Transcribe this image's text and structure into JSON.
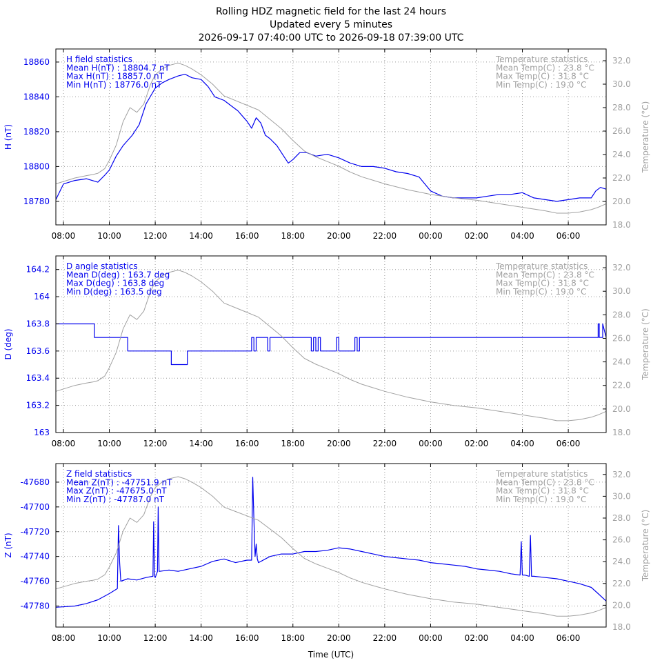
{
  "header": {
    "title_line1": "Rolling HDZ magnetic field for the last 24 hours",
    "title_line2": "Updated every 5 minutes",
    "title_line3": "2026-09-17 07:40:00 UTC to 2026-09-18 07:39:00 UTC"
  },
  "colors": {
    "primary": "#0000ee",
    "temperature": "#a0a0a0",
    "grid": "#999999",
    "axis": "#000000"
  },
  "chart_data": [
    {
      "type": "line",
      "id": "H",
      "ylabel": "H (nT)",
      "y2label": "Temperature (°C)",
      "xlabel": "",
      "ylim": [
        18766.5,
        18867.5
      ],
      "y2lim": [
        18,
        33
      ],
      "x_range_hours": [
        7.67,
        31.65
      ],
      "x_ticks": [
        "08:00",
        "10:00",
        "12:00",
        "14:00",
        "16:00",
        "18:00",
        "20:00",
        "22:00",
        "00:00",
        "02:00",
        "04:00",
        "06:00"
      ],
      "x_tick_hours": [
        8,
        10,
        12,
        14,
        16,
        18,
        20,
        22,
        24,
        26,
        28,
        30
      ],
      "y_ticks": [
        18780,
        18800,
        18820,
        18840,
        18860
      ],
      "y_tick_labels": [
        "18780",
        "18800",
        "18820",
        "18840",
        "18860"
      ],
      "y2_ticks": [
        18,
        20,
        22,
        24,
        26,
        28,
        30,
        32
      ],
      "y2_tick_labels": [
        "18.0",
        "20.0",
        "22.0",
        "24.0",
        "26.0",
        "28.0",
        "30.0",
        "32.0"
      ],
      "stats_left": [
        "H field statistics",
        "Mean H(nT) : 18804.7 nT",
        "Max H(nT) : 18857.0 nT",
        "Min H(nT) : 18776.0 nT"
      ],
      "stats_right": [
        "Temperature statistics",
        "Mean Temp(C) : 23.8 °C",
        "Max Temp(C) : 31.8 °C",
        "Min Temp(C) : 19.0 °C"
      ],
      "series": [
        {
          "role": "primary",
          "x": [
            7.67,
            8.0,
            8.5,
            9.0,
            9.5,
            9.8,
            10.0,
            10.3,
            10.6,
            11.0,
            11.3,
            11.6,
            12.0,
            12.3,
            12.6,
            13.0,
            13.3,
            13.6,
            14.0,
            14.3,
            14.6,
            15.0,
            15.3,
            15.6,
            16.0,
            16.2,
            16.4,
            16.6,
            16.8,
            17.0,
            17.3,
            17.6,
            17.8,
            18.0,
            18.3,
            18.6,
            19.0,
            19.5,
            20.0,
            20.5,
            21.0,
            21.5,
            22.0,
            22.5,
            23.0,
            23.5,
            24.0,
            24.5,
            25.0,
            25.5,
            26.0,
            26.5,
            27.0,
            27.5,
            28.0,
            28.5,
            29.0,
            29.5,
            30.0,
            30.5,
            31.0,
            31.2,
            31.4,
            31.65
          ],
          "y": [
            18781,
            18790,
            18792,
            18793,
            18791,
            18795,
            18798,
            18806,
            18812,
            18818,
            18824,
            18836,
            18845,
            18848,
            18850,
            18852,
            18853,
            18851,
            18850,
            18846,
            18840,
            18838,
            18835,
            18832,
            18826,
            18822,
            18828,
            18825,
            18818,
            18816,
            18812,
            18806,
            18802,
            18804,
            18808,
            18808,
            18806,
            18807,
            18805,
            18802,
            18800,
            18800,
            18799,
            18797,
            18796,
            18794,
            18786,
            18783,
            18782,
            18782,
            18782,
            18783,
            18784,
            18784,
            18785,
            18782,
            18781,
            18780,
            18781,
            18782,
            18782,
            18786,
            18788,
            18787
          ]
        },
        {
          "role": "temperature",
          "x": [
            7.67,
            8.5,
            9.0,
            9.3,
            9.5,
            9.8,
            10.0,
            10.3,
            10.6,
            10.9,
            11.2,
            11.5,
            11.8,
            12.0,
            12.3,
            12.6,
            13.0,
            13.3,
            13.6,
            14.0,
            14.5,
            15.0,
            15.5,
            16.0,
            16.5,
            17.0,
            17.5,
            18.0,
            18.5,
            19.0,
            19.5,
            20.0,
            20.5,
            21.0,
            21.5,
            22.0,
            23.0,
            24.0,
            25.0,
            26.0,
            27.0,
            28.0,
            29.0,
            29.5,
            30.0,
            30.5,
            31.0,
            31.3,
            31.65
          ],
          "y": [
            21.5,
            22.0,
            22.2,
            22.3,
            22.4,
            22.8,
            23.5,
            24.8,
            26.8,
            28.0,
            27.6,
            28.3,
            30.0,
            30.8,
            31.3,
            31.6,
            31.8,
            31.6,
            31.3,
            30.8,
            30.0,
            29.0,
            28.6,
            28.2,
            27.8,
            27.0,
            26.2,
            25.2,
            24.3,
            23.8,
            23.4,
            23.0,
            22.5,
            22.1,
            21.8,
            21.5,
            21.0,
            20.6,
            20.3,
            20.1,
            19.8,
            19.5,
            19.2,
            19.0,
            19.0,
            19.1,
            19.3,
            19.5,
            19.8
          ]
        }
      ]
    },
    {
      "type": "line",
      "id": "D",
      "ylabel": "D (deg)",
      "y2label": "Temperature (°C)",
      "xlabel": "",
      "ylim": [
        163.0,
        164.3
      ],
      "y2lim": [
        18,
        33
      ],
      "x_range_hours": [
        7.67,
        31.65
      ],
      "x_ticks": [
        "08:00",
        "10:00",
        "12:00",
        "14:00",
        "16:00",
        "18:00",
        "20:00",
        "22:00",
        "00:00",
        "02:00",
        "04:00",
        "06:00"
      ],
      "x_tick_hours": [
        8,
        10,
        12,
        14,
        16,
        18,
        20,
        22,
        24,
        26,
        28,
        30
      ],
      "y_ticks": [
        163.0,
        163.2,
        163.4,
        163.6,
        163.8,
        164.0,
        164.2
      ],
      "y_tick_labels": [
        "163",
        "163.2",
        "163.4",
        "163.6",
        "163.8",
        "164",
        "164.2"
      ],
      "y2_ticks": [
        18,
        20,
        22,
        24,
        26,
        28,
        30,
        32
      ],
      "y2_tick_labels": [
        "18.0",
        "20.0",
        "22.0",
        "24.0",
        "26.0",
        "28.0",
        "30.0",
        "32.0"
      ],
      "stats_left": [
        "D angle statistics",
        "Mean D(deg) : 163.7 deg",
        "Max D(deg) : 163.8 deg",
        "Min D(deg) : 163.5 deg"
      ],
      "stats_right": [
        "Temperature statistics",
        "Mean Temp(C) : 23.8 °C",
        "Max Temp(C) : 31.8 °C",
        "Min Temp(C) : 19.0 °C"
      ],
      "series": [
        {
          "role": "primary",
          "x": [
            7.67,
            9.35,
            9.35,
            10.8,
            10.8,
            12.7,
            12.7,
            13.4,
            13.4,
            16.2,
            16.2,
            16.3,
            16.3,
            16.4,
            16.4,
            16.9,
            16.9,
            17.0,
            17.0,
            18.8,
            18.8,
            18.9,
            18.9,
            19.0,
            19.0,
            19.1,
            19.1,
            19.2,
            19.2,
            19.9,
            19.9,
            20.0,
            20.0,
            20.7,
            20.7,
            20.8,
            20.8,
            20.9,
            20.9,
            21.0,
            21.0,
            31.3,
            31.3,
            31.35,
            31.35,
            31.5,
            31.5,
            31.65
          ],
          "y": [
            163.8,
            163.8,
            163.7,
            163.7,
            163.6,
            163.6,
            163.5,
            163.5,
            163.6,
            163.6,
            163.7,
            163.7,
            163.6,
            163.6,
            163.7,
            163.7,
            163.6,
            163.6,
            163.7,
            163.7,
            163.6,
            163.6,
            163.7,
            163.7,
            163.6,
            163.6,
            163.7,
            163.7,
            163.6,
            163.6,
            163.7,
            163.7,
            163.6,
            163.6,
            163.7,
            163.7,
            163.6,
            163.6,
            163.7,
            163.7,
            163.7,
            163.7,
            163.8,
            163.8,
            163.7,
            163.7,
            163.8,
            163.7
          ]
        },
        {
          "role": "temperature",
          "x": [
            7.67,
            8.5,
            9.0,
            9.3,
            9.5,
            9.8,
            10.0,
            10.3,
            10.6,
            10.9,
            11.2,
            11.5,
            11.8,
            12.0,
            12.3,
            12.6,
            13.0,
            13.3,
            13.6,
            14.0,
            14.5,
            15.0,
            15.5,
            16.0,
            16.5,
            17.0,
            17.5,
            18.0,
            18.5,
            19.0,
            19.5,
            20.0,
            20.5,
            21.0,
            21.5,
            22.0,
            23.0,
            24.0,
            25.0,
            26.0,
            27.0,
            28.0,
            29.0,
            29.5,
            30.0,
            30.5,
            31.0,
            31.3,
            31.65
          ],
          "y": [
            21.5,
            22.0,
            22.2,
            22.3,
            22.4,
            22.8,
            23.5,
            24.8,
            26.8,
            28.0,
            27.6,
            28.3,
            30.0,
            30.8,
            31.3,
            31.6,
            31.8,
            31.6,
            31.3,
            30.8,
            30.0,
            29.0,
            28.6,
            28.2,
            27.8,
            27.0,
            26.2,
            25.2,
            24.3,
            23.8,
            23.4,
            23.0,
            22.5,
            22.1,
            21.8,
            21.5,
            21.0,
            20.6,
            20.3,
            20.1,
            19.8,
            19.5,
            19.2,
            19.0,
            19.0,
            19.1,
            19.3,
            19.5,
            19.8
          ]
        }
      ]
    },
    {
      "type": "line",
      "id": "Z",
      "ylabel": "Z (nT)",
      "y2label": "Temperature (°C)",
      "xlabel": "Time (UTC)",
      "ylim": [
        -47797,
        -47665
      ],
      "y2lim": [
        18,
        33
      ],
      "x_range_hours": [
        7.67,
        31.65
      ],
      "x_ticks": [
        "08:00",
        "10:00",
        "12:00",
        "14:00",
        "16:00",
        "18:00",
        "20:00",
        "22:00",
        "00:00",
        "02:00",
        "04:00",
        "06:00"
      ],
      "x_tick_hours": [
        8,
        10,
        12,
        14,
        16,
        18,
        20,
        22,
        24,
        26,
        28,
        30
      ],
      "y_ticks": [
        -47780,
        -47760,
        -47740,
        -47720,
        -47700,
        -47680
      ],
      "y_tick_labels": [
        "-47780",
        "-47760",
        "-47740",
        "-47720",
        "-47700",
        "-47680"
      ],
      "y2_ticks": [
        18,
        20,
        22,
        24,
        26,
        28,
        30,
        32
      ],
      "y2_tick_labels": [
        "18.0",
        "20.0",
        "22.0",
        "24.0",
        "26.0",
        "28.0",
        "30.0",
        "32.0"
      ],
      "stats_left": [
        "Z field statistics",
        "Mean Z(nT) : -47751.9 nT",
        "Max Z(nT) : -47675.0 nT",
        "Min Z(nT) : -47787.0 nT"
      ],
      "stats_right": [
        "Temperature statistics",
        "Mean Temp(C) : 23.8 °C",
        "Max Temp(C) : 31.8 °C",
        "Min Temp(C) : 19.0 °C"
      ],
      "series": [
        {
          "role": "primary",
          "x": [
            7.67,
            8.5,
            9.0,
            9.5,
            10.0,
            10.35,
            10.4,
            10.45,
            10.5,
            10.8,
            11.2,
            11.6,
            11.9,
            11.93,
            11.97,
            12.0,
            12.1,
            12.13,
            12.17,
            12.2,
            12.6,
            13.0,
            13.5,
            14.0,
            14.5,
            15.0,
            15.5,
            16.0,
            16.2,
            16.25,
            16.3,
            16.35,
            16.4,
            16.45,
            16.5,
            17.0,
            17.5,
            18.0,
            18.5,
            19.0,
            19.5,
            20.0,
            20.5,
            21.0,
            21.5,
            22.0,
            22.5,
            23.0,
            23.5,
            24.0,
            24.5,
            25.0,
            25.5,
            26.0,
            26.5,
            27.0,
            27.5,
            27.9,
            27.95,
            28.0,
            28.05,
            28.1,
            28.3,
            28.35,
            28.4,
            28.45,
            28.5,
            29.0,
            29.5,
            30.0,
            30.5,
            31.0,
            31.3,
            31.65
          ],
          "y": [
            -47781,
            -47780,
            -47778,
            -47775,
            -47770,
            -47766,
            -47715,
            -47745,
            -47760,
            -47758,
            -47759,
            -47757,
            -47756,
            -47712,
            -47756,
            -47757,
            -47752,
            -47700,
            -47752,
            -47752,
            -47751,
            -47752,
            -47750,
            -47748,
            -47744,
            -47742,
            -47745,
            -47743,
            -47743,
            -47676,
            -47710,
            -47740,
            -47730,
            -47742,
            -47745,
            -47740,
            -47738,
            -47738,
            -47736,
            -47736,
            -47735,
            -47733,
            -47734,
            -47736,
            -47738,
            -47740,
            -47741,
            -47742,
            -47743,
            -47745,
            -47746,
            -47747,
            -47748,
            -47750,
            -47751,
            -47752,
            -47754,
            -47755,
            -47728,
            -47755,
            -47755,
            -47755,
            -47756,
            -47723,
            -47756,
            -47756,
            -47756,
            -47757,
            -47758,
            -47760,
            -47762,
            -47765,
            -47770,
            -47776
          ]
        },
        {
          "role": "temperature",
          "x": [
            7.67,
            8.5,
            9.0,
            9.3,
            9.5,
            9.8,
            10.0,
            10.3,
            10.6,
            10.9,
            11.2,
            11.5,
            11.8,
            12.0,
            12.3,
            12.6,
            13.0,
            13.3,
            13.6,
            14.0,
            14.5,
            15.0,
            15.5,
            16.0,
            16.5,
            17.0,
            17.5,
            18.0,
            18.5,
            19.0,
            19.5,
            20.0,
            20.5,
            21.0,
            21.5,
            22.0,
            23.0,
            24.0,
            25.0,
            26.0,
            27.0,
            28.0,
            29.0,
            29.5,
            30.0,
            30.5,
            31.0,
            31.3,
            31.65
          ],
          "y": [
            21.5,
            22.0,
            22.2,
            22.3,
            22.4,
            22.8,
            23.5,
            24.8,
            26.8,
            28.0,
            27.6,
            28.3,
            30.0,
            30.8,
            31.3,
            31.6,
            31.8,
            31.6,
            31.3,
            30.8,
            30.0,
            29.0,
            28.6,
            28.2,
            27.8,
            27.0,
            26.2,
            25.2,
            24.3,
            23.8,
            23.4,
            23.0,
            22.5,
            22.1,
            21.8,
            21.5,
            21.0,
            20.6,
            20.3,
            20.1,
            19.8,
            19.5,
            19.2,
            19.0,
            19.0,
            19.1,
            19.3,
            19.5,
            19.8
          ]
        }
      ]
    }
  ]
}
